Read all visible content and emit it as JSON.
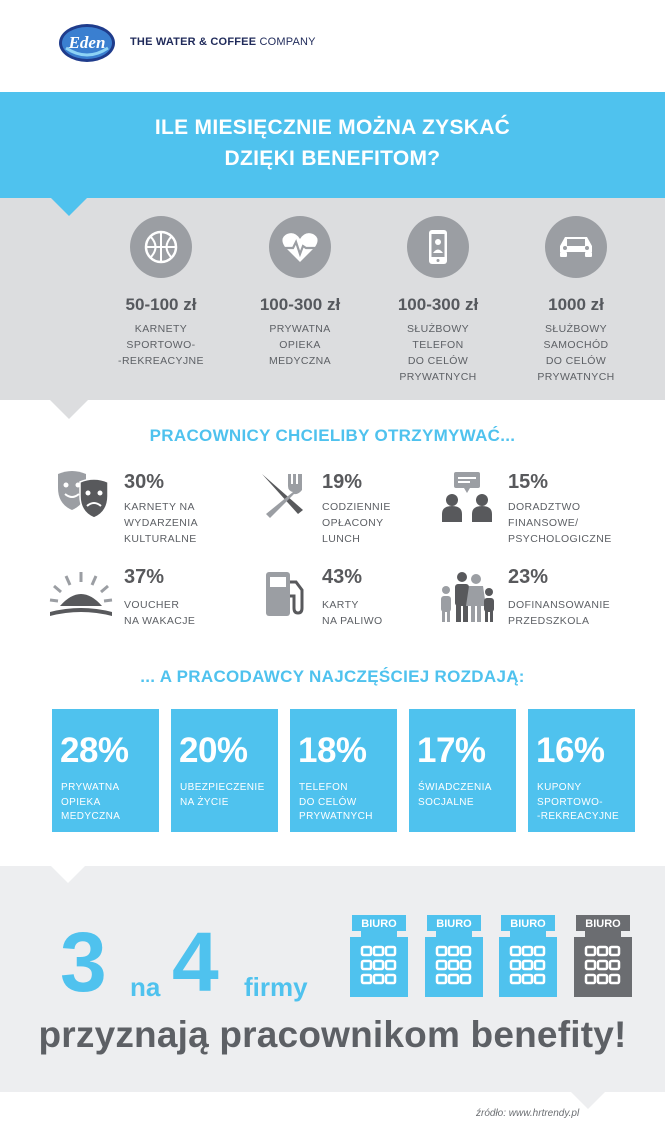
{
  "header": {
    "logo_text": "Eden",
    "tagline_bold": "THE WATER & COFFEE",
    "tagline_rest": " COMPANY"
  },
  "title": {
    "line1": "ILE MIESIĘCZNIE MOŻNA ZYSKAĆ",
    "line2": "DZIĘKI BENEFITOM?"
  },
  "benefits": [
    {
      "icon": "basketball-icon",
      "amount": "50-100 zł",
      "desc": [
        "KARNETY",
        "SPORTOWO-",
        "-REKREACYJNE"
      ]
    },
    {
      "icon": "heart-pulse-icon",
      "amount": "100-300 zł",
      "desc": [
        "PRYWATNA",
        "OPIEKA",
        "MEDYCZNA"
      ]
    },
    {
      "icon": "phone-icon",
      "amount": "100-300 zł",
      "desc": [
        "SŁUŻBOWY",
        "TELEFON",
        "DO CELÓW",
        "PRYWATNYCH"
      ]
    },
    {
      "icon": "car-icon",
      "amount": "1000 zł",
      "desc": [
        "SŁUŻBOWY",
        "SAMOCHÓD",
        "DO CELÓW",
        "PRYWATNYCH"
      ]
    }
  ],
  "employees": {
    "heading": "PRACOWNICY CHCIELIBY OTRZYMYWAĆ...",
    "items": [
      {
        "icon": "theater-masks-icon",
        "pct": "30%",
        "desc": [
          "KARNETY NA",
          "WYDARZENIA",
          "KULTURALNE"
        ]
      },
      {
        "icon": "fork-knife-icon",
        "pct": "19%",
        "desc": [
          "CODZIENNIE",
          "OPŁACONY",
          "LUNCH"
        ]
      },
      {
        "icon": "consultation-icon",
        "pct": "15%",
        "desc": [
          "DORADZTWO",
          "FINANSOWE/",
          "PSYCHOLOGICZNE"
        ]
      },
      {
        "icon": "sunset-icon",
        "pct": "37%",
        "desc": [
          "VOUCHER",
          "NA WAKACJE"
        ]
      },
      {
        "icon": "fuel-pump-icon",
        "pct": "43%",
        "desc": [
          "KARTY",
          "NA PALIWO"
        ]
      },
      {
        "icon": "family-icon",
        "pct": "23%",
        "desc": [
          "DOFINANSOWANIE",
          "PRZEDSZKOLA"
        ]
      }
    ]
  },
  "employers": {
    "heading": "... A PRACODAWCY NAJCZĘŚCIEJ ROZDAJĄ:",
    "tiles": [
      {
        "pct": "28%",
        "desc": [
          "PRYWATNA",
          "OPIEKA",
          "MEDYCZNA"
        ]
      },
      {
        "pct": "20%",
        "desc": [
          "UBEZPIECZENIE",
          "NA ŻYCIE"
        ]
      },
      {
        "pct": "18%",
        "desc": [
          "TELEFON",
          "DO CELÓW",
          "PRYWATNYCH"
        ]
      },
      {
        "pct": "17%",
        "desc": [
          "ŚWIADCZENIA",
          "SOCJALNE"
        ]
      },
      {
        "pct": "16%",
        "desc": [
          "KUPONY",
          "SPORTOWO-",
          "-REKREACYJNE"
        ]
      }
    ]
  },
  "summary": {
    "num_a": "3",
    "word_na": "na",
    "num_b": "4",
    "word_firmy": "firmy",
    "office_label": "BIURO",
    "offices_highlighted": 3,
    "offices_total": 4,
    "slogan": "przyznają pracownikom benefity!"
  },
  "source": "źródło: www.hrtrendy.pl",
  "colors": {
    "accent": "#4fc2ee",
    "grey_icon": "#9b9ea3",
    "dark_icon": "#58595c",
    "text": "#5d6065"
  }
}
